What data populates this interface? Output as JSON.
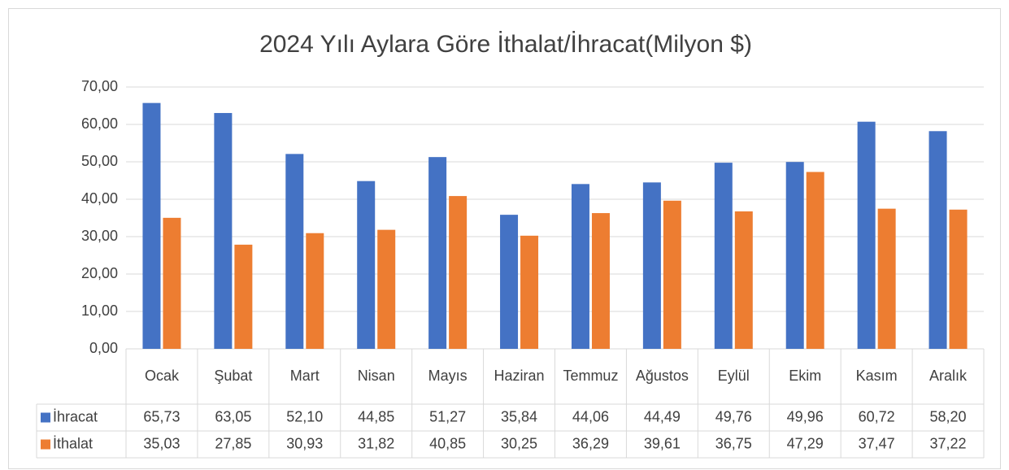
{
  "chart_data": {
    "type": "bar",
    "title": "2024 Yılı Aylara Göre İthalat/İhracat(Milyon $)",
    "categories": [
      "Ocak",
      "Şubat",
      "Mart",
      "Nisan",
      "Mayıs",
      "Haziran",
      "Temmuz",
      "Ağustos",
      "Eylül",
      "Ekim",
      "Kasım",
      "Aralık"
    ],
    "series": [
      {
        "name": "İhracat",
        "color": "#4472c4",
        "values": [
          65.73,
          63.05,
          52.1,
          44.85,
          51.27,
          35.84,
          44.06,
          44.49,
          49.76,
          49.96,
          60.72,
          58.2
        ],
        "value_labels": [
          "65,73",
          "63,05",
          "52,10",
          "44,85",
          "51,27",
          "35,84",
          "44,06",
          "44,49",
          "49,76",
          "49,96",
          "60,72",
          "58,20"
        ]
      },
      {
        "name": "İthalat",
        "color": "#ed7d31",
        "values": [
          35.03,
          27.85,
          30.93,
          31.82,
          40.85,
          30.25,
          36.29,
          39.61,
          36.75,
          47.29,
          37.47,
          37.22
        ],
        "value_labels": [
          "35,03",
          "27,85",
          "30,93",
          "31,82",
          "40,85",
          "30,25",
          "36,29",
          "39,61",
          "36,75",
          "47,29",
          "37,47",
          "37,22"
        ]
      }
    ],
    "ylim": [
      0,
      70
    ],
    "yticks": [
      {
        "value": 0,
        "label": "0,00"
      },
      {
        "value": 10,
        "label": "10,00"
      },
      {
        "value": 20,
        "label": "20,00"
      },
      {
        "value": 30,
        "label": "30,00"
      },
      {
        "value": 40,
        "label": "40,00"
      },
      {
        "value": 50,
        "label": "50,00"
      },
      {
        "value": 60,
        "label": "60,00"
      },
      {
        "value": 70,
        "label": "70,00"
      }
    ],
    "grid": true
  }
}
